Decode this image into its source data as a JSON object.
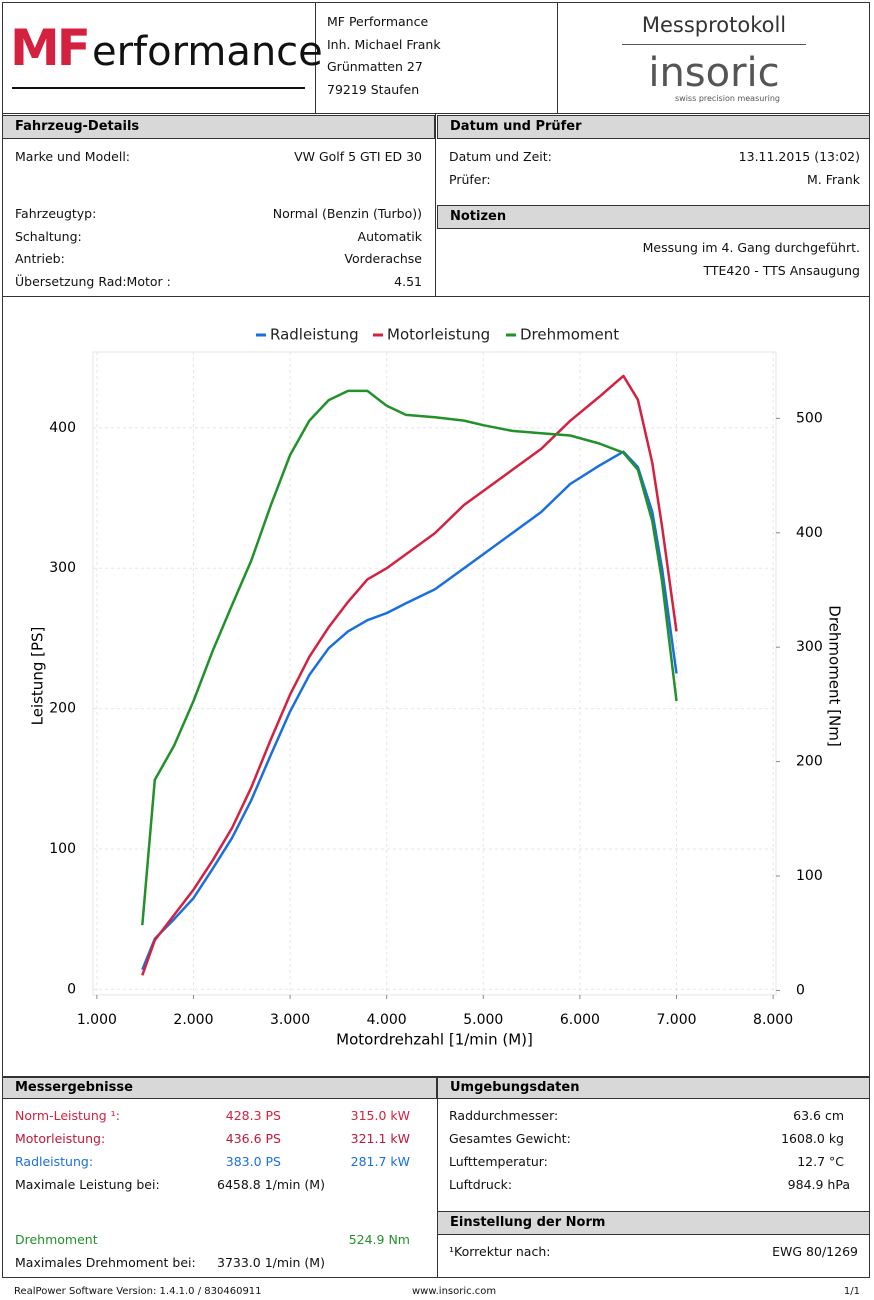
{
  "header": {
    "logo": {
      "red": "MF",
      "black": "erformance"
    },
    "address": [
      "MF Performance",
      "Inh. Michael Frank",
      "Grünmatten 27",
      "79219 Staufen"
    ],
    "title": "Messprotokoll",
    "brand": "insoric",
    "tagline": "swiss precision measuring"
  },
  "vehicle": {
    "title": "Fahrzeug-Details",
    "rows": [
      [
        "Marke und Modell:",
        "VW Golf 5 GTI ED 30"
      ],
      [
        "Fahrzeugtyp:",
        "Normal (Benzin (Turbo))"
      ],
      [
        "Schaltung:",
        "Automatik"
      ],
      [
        "Antrieb:",
        "Vorderachse"
      ],
      [
        "Übersetzung Rad:Motor :",
        "4.51"
      ]
    ]
  },
  "inspection": {
    "title": "Datum und Prüfer",
    "rows": [
      [
        "Datum und Zeit:",
        "13.11.2015 (13:02)"
      ],
      [
        "Prüfer:",
        "M. Frank"
      ]
    ]
  },
  "notes": {
    "title": "Notizen",
    "lines": [
      "Messung im 4. Gang durchgeführt.",
      "TTE420 - TTS Ansaugung"
    ]
  },
  "chart_data": {
    "type": "line",
    "xlabel": "Motordrehzahl [1/min (M)]",
    "ylabel": "Leistung [PS]",
    "y2label": "Drehmoment [Nm]",
    "x": [
      1470,
      1600,
      1800,
      2000,
      2200,
      2400,
      2600,
      2800,
      3000,
      3200,
      3400,
      3600,
      3800,
      4000,
      4200,
      4500,
      4800,
      5000,
      5300,
      5600,
      5900,
      6200,
      6450,
      6600,
      6750,
      6850,
      7000
    ],
    "series": [
      {
        "name": "Radleistung",
        "color": "#1a6fe0",
        "values": [
          14,
          36,
          50,
          65,
          86,
          108,
          135,
          167,
          198,
          224,
          243,
          255,
          263,
          268,
          275,
          285,
          300,
          310,
          325,
          340,
          360,
          373,
          383,
          372,
          340,
          300,
          225
        ]
      },
      {
        "name": "Motorleistung",
        "color": "#d4213f",
        "values": [
          10,
          35,
          53,
          71,
          92,
          115,
          144,
          178,
          210,
          237,
          258,
          276,
          292,
          300,
          310,
          325,
          345,
          355,
          370,
          385,
          405,
          422,
          437,
          420,
          375,
          330,
          255
        ]
      },
      {
        "name": "Drehmoment",
        "color": "#22912a",
        "axis": "y2",
        "values": [
          57,
          184,
          214,
          253,
          297,
          337,
          376,
          424,
          468,
          498,
          516,
          524,
          524,
          511,
          503,
          501,
          498,
          494,
          489,
          487,
          485,
          478,
          470,
          455,
          410,
          358,
          253
        ]
      }
    ],
    "xlim": [
      960,
      8030
    ],
    "xticks": [
      {
        "value": 1000,
        "label": "1.000"
      },
      {
        "value": 2000,
        "label": "2.000"
      },
      {
        "value": 3000,
        "label": "3.000"
      },
      {
        "value": 4000,
        "label": "4.000"
      },
      {
        "value": 5000,
        "label": "5.000"
      },
      {
        "value": 6000,
        "label": "6.000"
      },
      {
        "value": 7000,
        "label": "7.000"
      },
      {
        "value": 8000,
        "label": "8.000"
      }
    ],
    "ylim": [
      -4,
      454
    ],
    "yticks": [
      0,
      100,
      200,
      300,
      400
    ],
    "y2lim": [
      -4,
      558
    ],
    "y2ticks": [
      0,
      100,
      200,
      300,
      400,
      500
    ],
    "grid": true,
    "legend": "top"
  },
  "results": {
    "title": "Messergebnisse",
    "power_rows": [
      [
        "Norm-Leistung ¹:",
        "428.3 PS",
        "315.0 kW"
      ],
      [
        "Motorleistung:",
        "436.6 PS",
        "321.1 kW"
      ],
      [
        "Radleistung:",
        "383.0 PS",
        "281.7 kW"
      ]
    ],
    "max_power": [
      "Maximale Leistung bei:",
      "6458.8 1/min (M)"
    ],
    "torque": [
      "Drehmoment",
      "524.9 Nm"
    ],
    "max_torque": [
      "Maximales Drehmoment bei:",
      "3733.0 1/min (M)"
    ]
  },
  "environment": {
    "title": "Umgebungsdaten",
    "rows": [
      [
        "Raddurchmesser:",
        "63.6 cm"
      ],
      [
        "Gesamtes Gewicht:",
        "1608.0 kg"
      ],
      [
        "Lufttemperatur:",
        "12.7 °C"
      ],
      [
        "Luftdruck:",
        "984.9 hPa"
      ]
    ]
  },
  "norm": {
    "title": "Einstellung der Norm",
    "rows": [
      [
        "¹Korrektur nach:",
        "EWG 80/1269"
      ]
    ]
  },
  "footer": {
    "left": "RealPower Software Version: 1.4.1.0 / 830460911",
    "center": "www.insoric.com",
    "right": "1/1"
  }
}
